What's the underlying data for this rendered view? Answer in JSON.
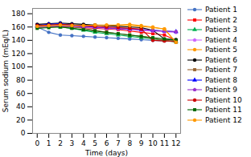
{
  "chart_data": {
    "type": "line",
    "xlabel": "Time (days)",
    "ylabel": "Serum sodium (mEq/L)",
    "x": [
      0,
      1,
      2,
      3,
      4,
      5,
      6,
      7,
      8,
      9,
      10,
      11,
      12
    ],
    "xlim": [
      -0.4,
      12.4
    ],
    "xticks": [
      0,
      1,
      2,
      3,
      4,
      5,
      6,
      7,
      8,
      9,
      10,
      11,
      12
    ],
    "ylim": [
      0,
      188
    ],
    "yticks": [
      0,
      20,
      40,
      60,
      80,
      100,
      120,
      140,
      160,
      180
    ],
    "grid": false,
    "legend": "right",
    "series": [
      {
        "name": "Patient 1",
        "color": "#4472C4",
        "marker": "circle",
        "values": [
          160,
          152,
          148,
          147,
          146,
          145,
          144,
          143,
          142,
          141,
          140,
          139,
          138
        ]
      },
      {
        "name": "Patient 2",
        "color": "#FF0000",
        "marker": "square",
        "values": [
          163,
          162,
          161,
          160,
          159,
          158,
          157,
          156,
          154,
          152,
          150,
          148,
          140
        ]
      },
      {
        "name": "Patient 3",
        "color": "#00B050",
        "marker": "triangle",
        "values": [
          161,
          161,
          160,
          158,
          155,
          152,
          150,
          148,
          146,
          144,
          142,
          140,
          138
        ]
      },
      {
        "name": "Patient 4",
        "color": "#CC66FF",
        "marker": "pentagon",
        "values": [
          162,
          163,
          162,
          161,
          160,
          159,
          158,
          157,
          156,
          155,
          154,
          153,
          152
        ]
      },
      {
        "name": "Patient 5",
        "color": "#FF9900",
        "marker": "circle",
        "values": [
          160,
          162,
          164,
          163,
          162,
          163,
          162,
          163,
          164,
          162,
          160,
          157,
          137
        ]
      },
      {
        "name": "Patient 6",
        "color": "#000000",
        "marker": "circle",
        "values": [
          164,
          165,
          166,
          165,
          164,
          163,
          162,
          161,
          160,
          159,
          155,
          142,
          141
        ]
      },
      {
        "name": "Patient 7",
        "color": "#996633",
        "marker": "square",
        "values": [
          159,
          160,
          161,
          160,
          158,
          155,
          152,
          150,
          148,
          146,
          143,
          140,
          137
        ]
      },
      {
        "name": "Patient 8",
        "color": "#0000FF",
        "marker": "triangle",
        "values": [
          162,
          164,
          165,
          163,
          161,
          160,
          159,
          158,
          157,
          156,
          155,
          154,
          153
        ]
      },
      {
        "name": "Patient 9",
        "color": "#9933CC",
        "marker": "pentagon",
        "values": [
          160,
          161,
          162,
          161,
          160,
          160,
          159,
          158,
          157,
          156,
          155,
          154,
          153
        ]
      },
      {
        "name": "Patient 10",
        "color": "#CC0000",
        "marker": "circle",
        "values": [
          162,
          163,
          164,
          163,
          162,
          161,
          160,
          159,
          158,
          157,
          140,
          139,
          139
        ]
      },
      {
        "name": "Patient 11",
        "color": "#006600",
        "marker": "square",
        "values": [
          158,
          159,
          160,
          158,
          156,
          154,
          152,
          150,
          148,
          146,
          144,
          142,
          140
        ]
      },
      {
        "name": "Patient 12",
        "color": "#FF9900",
        "marker": "circle",
        "values": [
          161,
          162,
          163,
          162,
          162,
          163,
          163,
          163,
          162,
          161,
          159,
          157,
          137
        ]
      }
    ]
  }
}
